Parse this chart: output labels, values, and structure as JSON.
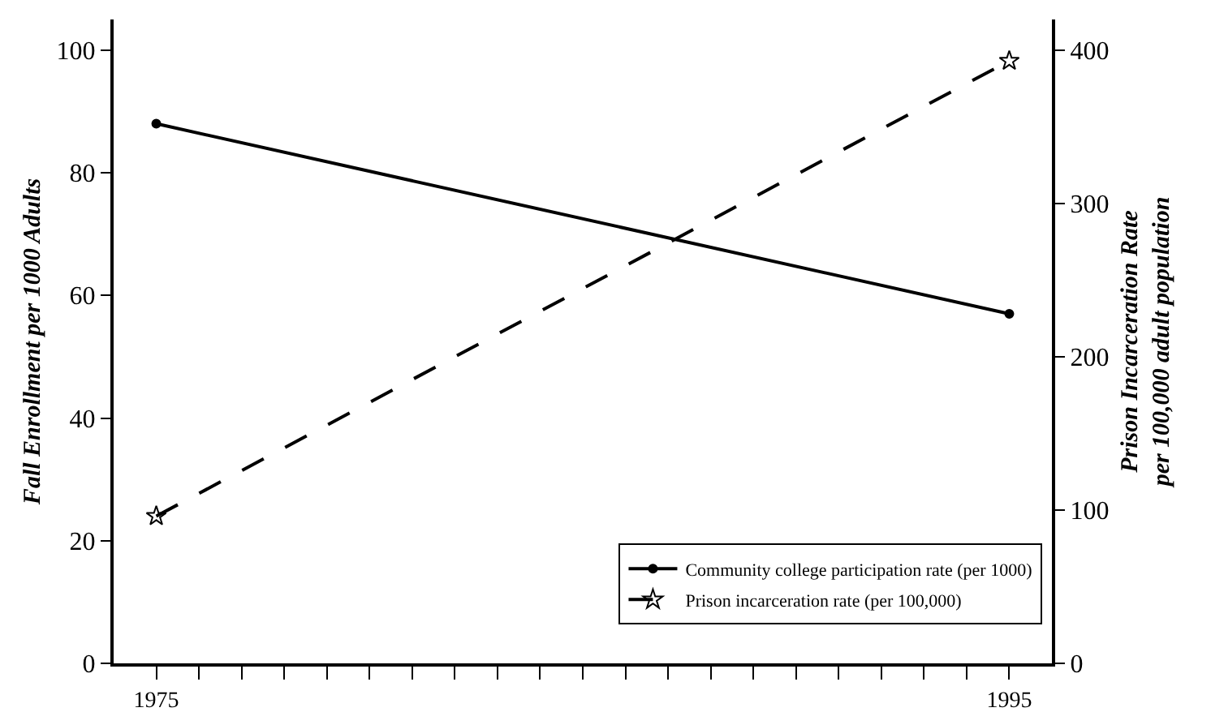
{
  "chart_data": {
    "type": "line",
    "ylabel": "Fall Enrollment per 1000 Adults",
    "y2label": "Prison Incarceration Rate\nper 100,000 adult population",
    "x": [
      1975,
      1995
    ],
    "series": [
      {
        "name": "Community college participation rate (per 1000)",
        "color": "#000000",
        "values": [
          88,
          57
        ],
        "marker": "circle",
        "line_style": "solid"
      },
      {
        "name": "Prison incarceration rate (per 100,000)",
        "color": "#000000",
        "values": [
          96,
          393
        ],
        "axis": "y2",
        "marker": "star",
        "line_style": "dashed"
      }
    ],
    "xlim": [
      1974,
      1996
    ],
    "xticks": [
      1975,
      {
        "value": 1976,
        "label": null
      },
      {
        "value": 1977,
        "label": null
      },
      {
        "value": 1978,
        "label": null
      },
      {
        "value": 1979,
        "label": null
      },
      {
        "value": 1980,
        "label": null
      },
      {
        "value": 1981,
        "label": null
      },
      {
        "value": 1982,
        "label": null
      },
      {
        "value": 1983,
        "label": null
      },
      {
        "value": 1984,
        "label": null
      },
      {
        "value": 1985,
        "label": null
      },
      {
        "value": 1986,
        "label": null
      },
      {
        "value": 1987,
        "label": null
      },
      {
        "value": 1988,
        "label": null
      },
      {
        "value": 1989,
        "label": null
      },
      {
        "value": 1990,
        "label": null
      },
      {
        "value": 1991,
        "label": null
      },
      {
        "value": 1992,
        "label": null
      },
      {
        "value": 1993,
        "label": null
      },
      {
        "value": 1994,
        "label": null
      },
      1995
    ],
    "ylim": [
      0,
      105
    ],
    "yticks": [
      0,
      20,
      40,
      60,
      80,
      100
    ],
    "y2lim": [
      0,
      420
    ],
    "y2ticks": [
      0,
      100,
      200,
      300,
      400
    ],
    "grid": false,
    "legend": "bottom right"
  }
}
